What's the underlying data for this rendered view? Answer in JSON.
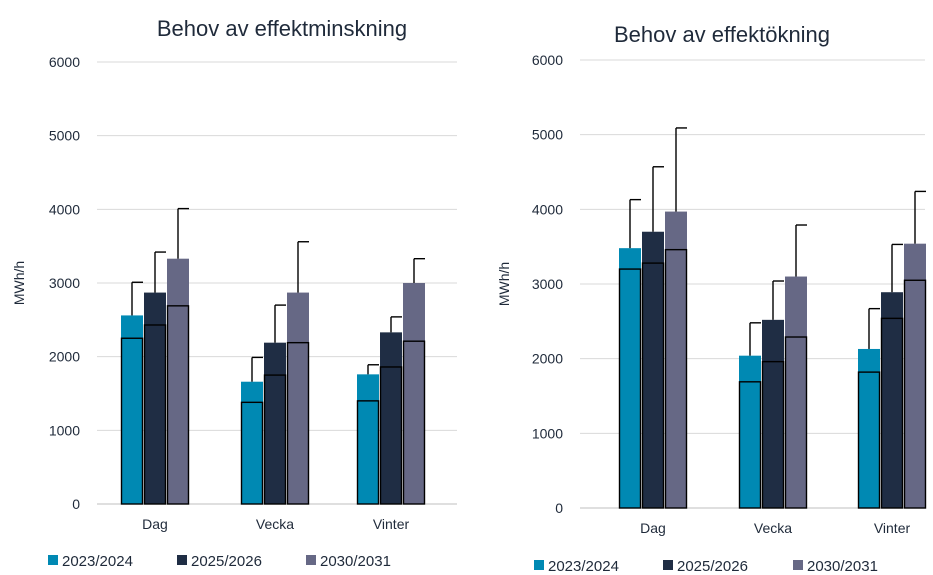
{
  "colors": {
    "series": [
      "#0089B3",
      "#1F2D44",
      "#666885"
    ],
    "text": "#1f2a3a",
    "grid": "#d9d9d9",
    "error_bar": "#000000"
  },
  "chart_data": [
    {
      "type": "bar",
      "title": "Behov av effektminskning",
      "ylabel": "MWh/h",
      "xlabel": "",
      "ylim": [
        0,
        6000
      ],
      "yticks": [
        0,
        1000,
        2000,
        3000,
        4000,
        5000,
        6000
      ],
      "categories": [
        "Dag",
        "Vecka",
        "Vinter"
      ],
      "grid": true,
      "legend_position": "bottom",
      "series": [
        {
          "name": "2023/2024",
          "values": [
            2560,
            1660,
            1760
          ],
          "inner_values": [
            2250,
            1380,
            1400
          ],
          "error_top": [
            3010,
            1990,
            1890
          ]
        },
        {
          "name": "2025/2026",
          "values": [
            2870,
            2190,
            2330
          ],
          "inner_values": [
            2430,
            1750,
            1860
          ],
          "error_top": [
            3420,
            2700,
            2540
          ]
        },
        {
          "name": "2030/2031",
          "values": [
            3330,
            2870,
            3000
          ],
          "inner_values": [
            2690,
            2190,
            2210
          ],
          "error_top": [
            4010,
            3560,
            3330
          ]
        }
      ]
    },
    {
      "type": "bar",
      "title": "Behov av effektökning",
      "ylabel": "MWh/h",
      "xlabel": "",
      "ylim": [
        0,
        6000
      ],
      "yticks": [
        0,
        1000,
        2000,
        3000,
        4000,
        5000,
        6000
      ],
      "categories": [
        "Dag",
        "Vecka",
        "Vinter"
      ],
      "grid": true,
      "legend_position": "bottom",
      "series": [
        {
          "name": "2023/2024",
          "values": [
            3480,
            2040,
            2130
          ],
          "inner_values": [
            3200,
            1690,
            1820
          ],
          "error_top": [
            4130,
            2480,
            2670
          ]
        },
        {
          "name": "2025/2026",
          "values": [
            3700,
            2520,
            2890
          ],
          "inner_values": [
            3280,
            1960,
            2540
          ],
          "error_top": [
            4570,
            3040,
            3530
          ]
        },
        {
          "name": "2030/2031",
          "values": [
            3970,
            3100,
            3540
          ],
          "inner_values": [
            3460,
            2290,
            3050
          ],
          "error_top": [
            5090,
            3790,
            4240
          ]
        }
      ]
    }
  ]
}
